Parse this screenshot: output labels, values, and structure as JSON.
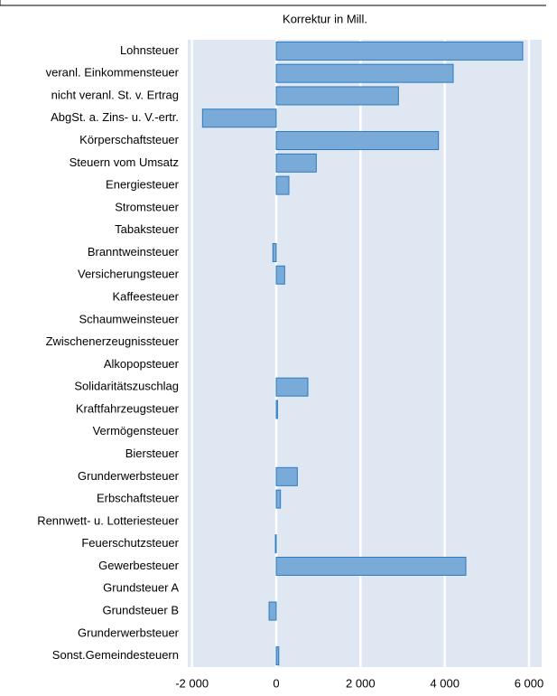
{
  "chart_data": {
    "type": "hbar",
    "xlabel": "Korrektur in Mill.",
    "categories": [
      "Lohnsteuer",
      "veranl. Einkommensteuer",
      "nicht veranl. St. v. Ertrag",
      "AbgSt. a. Zins- u. V.-ertr.",
      "Körperschaftsteuer",
      "Steuern vom Umsatz",
      "Energiesteuer",
      "Stromsteuer",
      "Tabaksteuer",
      "Branntweinsteuer",
      "Versicherungsteuer",
      "Kaffeesteuer",
      "Schaumweinsteuer",
      "Zwischenerzeugnissteuer",
      "Alkopopsteuer",
      "Solidaritätszuschlag",
      "Kraftfahrzeugsteuer",
      "Vermögensteuer",
      "Biersteuer",
      "Grunderwerbsteuer",
      "Erbschaftsteuer",
      "Rennwett- u. Lotteriesteuer",
      "Feuerschutzsteuer",
      "Gewerbesteuer",
      "Grundsteuer A",
      "Grundsteuer B",
      "Grunderwerbsteuer",
      "Sonst.Gemeindesteuern"
    ],
    "values": [
      5850,
      4200,
      2900,
      -1750,
      3850,
      950,
      300,
      0,
      0,
      -80,
      200,
      0,
      0,
      0,
      0,
      750,
      30,
      0,
      0,
      500,
      100,
      0,
      -20,
      4500,
      0,
      -170,
      0,
      60
    ],
    "color": "#7aaad8",
    "xlim": [
      -2100,
      6300
    ],
    "xticks": [
      {
        "value": -2000,
        "label": "-2 000"
      },
      0,
      {
        "value": 2000,
        "label": "2 000"
      },
      {
        "value": 4000,
        "label": "4 000"
      },
      {
        "value": 6000,
        "label": "6 000"
      }
    ],
    "grid": true
  }
}
